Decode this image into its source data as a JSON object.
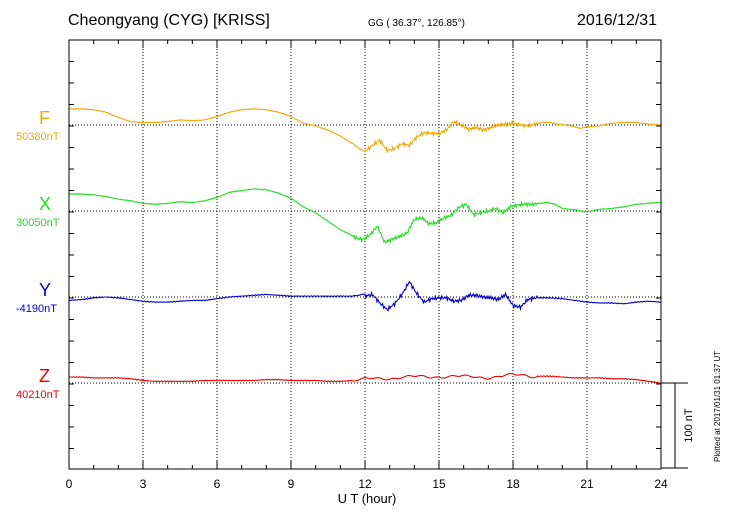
{
  "header": {
    "station": "Cheongyang (CYG)  [KRISS]",
    "coords": "GG ( 36.37°, 126.85°)",
    "date": "2016/12/31"
  },
  "side_note": "Plotted at 2017/01/31 01:37 UT",
  "chart_data": {
    "type": "line",
    "xlabel": "U T (hour)",
    "xlim": [
      0,
      24
    ],
    "xticks": [
      "0",
      "3",
      "6",
      "9",
      "12",
      "15",
      "18",
      "21",
      "24"
    ],
    "scale_bar": "100 nT",
    "scale_nt": 100,
    "series": [
      {
        "name": "F",
        "baseline": "50380nT",
        "color": "#f0a800",
        "x": [
          0,
          0.5,
          1,
          1.5,
          2,
          2.5,
          3,
          3.5,
          4,
          4.5,
          5,
          5.5,
          6,
          6.5,
          7,
          7.5,
          8,
          8.5,
          9,
          9.5,
          10,
          10.5,
          11,
          11.5,
          12,
          12.3,
          12.6,
          12.9,
          13.2,
          13.5,
          13.8,
          14.1,
          14.4,
          14.7,
          15,
          15.3,
          15.6,
          15.9,
          16.2,
          16.5,
          16.8,
          17.1,
          17.4,
          17.7,
          18,
          18.3,
          18.6,
          18.9,
          19.2,
          19.5,
          19.8,
          20.1,
          20.4,
          20.7,
          21,
          21.5,
          22,
          22.5,
          23,
          23.5,
          24
        ],
        "y": [
          19,
          19,
          18,
          15,
          9,
          4,
          3,
          3,
          4,
          6,
          5,
          6,
          10,
          15,
          18,
          19,
          18,
          15,
          10,
          2,
          -1,
          -6,
          -13,
          -22,
          -31,
          -24,
          -18,
          -30,
          -28,
          -22,
          -24,
          -14,
          -9,
          -10,
          -10,
          -6,
          4,
          0,
          -5,
          -3,
          -6,
          -3,
          0,
          1,
          2,
          0,
          -1,
          1,
          3,
          3,
          1,
          0,
          -1,
          -4,
          -2,
          -1,
          2,
          3,
          3,
          1,
          0
        ]
      },
      {
        "name": "X",
        "baseline": "30050nT",
        "color": "#22dd22",
        "x": [
          0,
          0.5,
          1,
          1.5,
          2,
          2.5,
          3,
          3.5,
          4,
          4.5,
          5,
          5.5,
          6,
          6.5,
          7,
          7.5,
          8,
          8.5,
          9,
          9.5,
          10,
          10.5,
          11,
          11.3,
          11.6,
          11.9,
          12.2,
          12.5,
          12.8,
          13.1,
          13.4,
          13.7,
          14,
          14.3,
          14.6,
          14.9,
          15.2,
          15.5,
          15.8,
          16.1,
          16.4,
          16.7,
          17,
          17.3,
          17.6,
          17.9,
          18.2,
          18.5,
          18.8,
          19.1,
          19.4,
          19.7,
          20,
          20.3,
          20.6,
          20.9,
          21.2,
          21.5,
          22,
          22.5,
          23,
          23.5,
          24
        ],
        "y": [
          20,
          20,
          19,
          17,
          14,
          12,
          9,
          8,
          9,
          11,
          10,
          12,
          16,
          22,
          24,
          26,
          25,
          21,
          15,
          5,
          -2,
          -12,
          -22,
          -26,
          -31,
          -34,
          -28,
          -18,
          -37,
          -33,
          -30,
          -26,
          -10,
          -8,
          -15,
          -14,
          -8,
          -5,
          4,
          8,
          -4,
          -2,
          0,
          3,
          -2,
          5,
          7,
          8,
          8,
          9,
          10,
          8,
          3,
          2,
          1,
          -1,
          0,
          2,
          3,
          5,
          8,
          9,
          10
        ]
      },
      {
        "name": "Y",
        "baseline": "-4190nT",
        "color": "#0000cc",
        "x": [
          0,
          0.5,
          1,
          1.5,
          2,
          2.5,
          3,
          3.5,
          4,
          4.5,
          5,
          5.5,
          6,
          6.5,
          7,
          7.5,
          8,
          8.5,
          9,
          9.5,
          10,
          10.5,
          11,
          11.5,
          12,
          12.3,
          12.6,
          12.9,
          13.2,
          13.5,
          13.8,
          14.1,
          14.4,
          14.7,
          15,
          15.3,
          15.6,
          15.9,
          16.2,
          16.5,
          16.8,
          17.1,
          17.4,
          17.7,
          18,
          18.3,
          18.6,
          18.9,
          19.2,
          19.5,
          20,
          20.5,
          21,
          21.5,
          22,
          22.5,
          23,
          23.5,
          24
        ],
        "y": [
          -4,
          -3,
          -1,
          0,
          -1,
          -3,
          -5,
          -6,
          -6,
          -5,
          -4,
          -4,
          -2,
          0,
          1,
          2,
          3,
          2,
          1,
          1,
          1,
          1,
          1,
          1,
          1,
          3,
          -7,
          -15,
          -8,
          3,
          18,
          4,
          -6,
          -2,
          -1,
          -1,
          -5,
          -4,
          2,
          2,
          0,
          -1,
          -3,
          3,
          -10,
          -12,
          -3,
          -1,
          -1,
          -1,
          -2,
          -4,
          -6,
          -7,
          -7,
          -8,
          -6,
          -5,
          -6
        ]
      },
      {
        "name": "Z",
        "baseline": "40210nT",
        "color": "#ee0000",
        "x": [
          0,
          0.5,
          1,
          1.5,
          2,
          2.5,
          3,
          3.5,
          4,
          4.5,
          5,
          5.5,
          6,
          6.5,
          7,
          7.5,
          8,
          8.5,
          9,
          9.5,
          10,
          10.5,
          11,
          11.5,
          12,
          12.5,
          13,
          13.5,
          14,
          14.5,
          15,
          15.5,
          16,
          16.5,
          17,
          17.5,
          18,
          18.5,
          19,
          19.5,
          20,
          20.5,
          21,
          21.5,
          22,
          22.5,
          23,
          23.5,
          24
        ],
        "y": [
          7,
          7,
          6,
          6,
          6,
          5,
          3,
          2,
          2,
          2,
          2,
          3,
          3,
          3,
          3,
          3,
          4,
          4,
          3,
          3,
          3,
          2,
          2,
          3,
          4,
          5,
          6,
          7,
          7,
          7,
          8,
          8,
          7,
          7,
          7,
          8,
          9,
          9,
          8,
          8,
          7,
          6,
          6,
          6,
          5,
          5,
          4,
          2,
          0
        ]
      }
    ]
  }
}
